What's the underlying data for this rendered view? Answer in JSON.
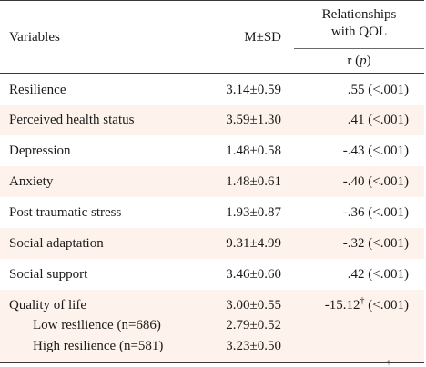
{
  "headers": {
    "variables": "Variables",
    "msd": "M±SD",
    "relationships_line1": "Relationships",
    "relationships_line2": "with QOL",
    "r_label": "r",
    "p_label": "p"
  },
  "rows": [
    {
      "label": "Resilience",
      "msd": "3.14±0.59",
      "rel": ".55 (<.001)"
    },
    {
      "label": "Perceived health status",
      "msd": "3.59±1.30",
      "rel": ".41 (<.001)"
    },
    {
      "label": "Depression",
      "msd": "1.48±0.58",
      "rel": "-.43 (<.001)"
    },
    {
      "label": "Anxiety",
      "msd": "1.48±0.61",
      "rel": "-.40 (<.001)"
    },
    {
      "label": "Post traumatic stress",
      "msd": "1.93±0.87",
      "rel": "-.36 (<.001)"
    },
    {
      "label": "Social adaptation",
      "msd": "9.31±4.99",
      "rel": "-.32 (<.001)"
    },
    {
      "label": "Social support",
      "msd": "3.46±0.60",
      "rel": ".42 (<.001)"
    }
  ],
  "qol": {
    "label": "Quality of life",
    "msd": "3.00±0.55",
    "rel_value": "-15.12",
    "rel_mark": "†",
    "rel_p": "(<.001)",
    "sub": [
      {
        "label": "Low resilience (n=686)",
        "msd": "2.79±0.52"
      },
      {
        "label": "High resilience (n=581)",
        "msd": "3.23±0.50"
      }
    ]
  },
  "footnote_mark": "†"
}
